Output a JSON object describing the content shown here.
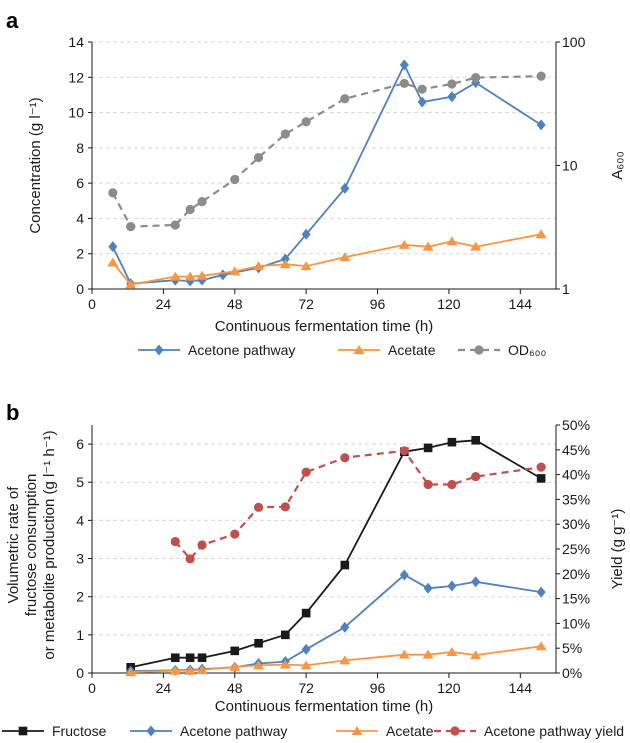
{
  "chart_data": [
    {
      "panel_label": "a",
      "type": "line",
      "xlabel": "Continuous fermentation time (h)",
      "ylabel": "Concentration (g l⁻¹)",
      "y2label": "A₆₀₀",
      "xlim": [
        0,
        156
      ],
      "ylim": [
        0,
        14
      ],
      "y2lim": [
        1,
        100
      ],
      "y2scale": "log",
      "grid": "horizontal dashed",
      "legend": "bottom",
      "x_ticks": [
        "0",
        "24",
        "48",
        "72",
        "96",
        "120",
        "144"
      ],
      "y_ticks": [
        "0",
        "2",
        "4",
        "6",
        "8",
        "10",
        "12",
        "14"
      ],
      "y2_ticks": [
        "1",
        "10",
        "100"
      ],
      "series": [
        {
          "name": "Acetone pathway",
          "axis": "left",
          "color": "#4f81bd",
          "marker": "diamond",
          "dash": "solid",
          "x": [
            7,
            13,
            28,
            33,
            37,
            44,
            56,
            65,
            72,
            85,
            105,
            111,
            121,
            129,
            151
          ],
          "y": [
            2.4,
            0.3,
            0.5,
            0.45,
            0.5,
            0.8,
            1.2,
            1.7,
            3.1,
            5.7,
            12.7,
            10.6,
            10.9,
            11.7,
            9.3
          ]
        },
        {
          "name": "Acetate",
          "axis": "left",
          "color": "#f79646",
          "marker": "triangle",
          "dash": "solid",
          "x": [
            7,
            13,
            28,
            33,
            37,
            48,
            56,
            65,
            72,
            85,
            105,
            113,
            121,
            129,
            151
          ],
          "y": [
            1.5,
            0.25,
            0.7,
            0.7,
            0.75,
            1.0,
            1.3,
            1.4,
            1.3,
            1.8,
            2.5,
            2.4,
            2.7,
            2.4,
            3.1
          ]
        },
        {
          "name": "OD₆₀₀",
          "axis": "right",
          "color": "#8c8c8c",
          "marker": "circle",
          "dash": "dashed",
          "x": [
            7,
            13,
            28,
            33,
            37,
            48,
            56,
            65,
            72,
            85,
            105,
            111,
            121,
            129,
            151
          ],
          "y": [
            6.0,
            3.2,
            3.3,
            4.4,
            5.1,
            7.7,
            11.6,
            18.0,
            22.6,
            34.7,
            46.2,
            41.5,
            45.7,
            51.5,
            52.9
          ]
        }
      ]
    },
    {
      "panel_label": "b",
      "type": "line",
      "xlabel": "Continuous fermentation time (h)",
      "ylabel_lines": [
        "Volumetric rate of",
        "fructose consumption",
        "or metabolite production (g l⁻¹ h⁻¹)"
      ],
      "y2label": "Yield (g g⁻¹)",
      "xlim": [
        0,
        156
      ],
      "ylim": [
        0,
        6.5
      ],
      "y2lim": [
        0,
        50
      ],
      "grid": "horizontal dashed",
      "legend": "bottom",
      "x_ticks": [
        "0",
        "24",
        "48",
        "72",
        "96",
        "120",
        "144"
      ],
      "y_ticks": [
        "0",
        "1",
        "2",
        "3",
        "4",
        "5",
        "6"
      ],
      "y2_ticks": [
        "0%",
        "5%",
        "10%",
        "15%",
        "20%",
        "25%",
        "30%",
        "35%",
        "40%",
        "45%",
        "50%"
      ],
      "series": [
        {
          "name": "Fructose",
          "axis": "left",
          "color": "#1a1a1a",
          "marker": "square",
          "dash": "solid",
          "x": [
            13,
            28,
            33,
            37,
            48,
            56,
            65,
            72,
            85,
            105,
            113,
            121,
            129,
            151
          ],
          "y": [
            0.15,
            0.4,
            0.4,
            0.4,
            0.58,
            0.78,
            1.0,
            1.57,
            2.83,
            5.8,
            5.9,
            6.05,
            6.1,
            5.1
          ]
        },
        {
          "name": "Acetone pathway",
          "axis": "left",
          "color": "#4f81bd",
          "marker": "diamond",
          "dash": "solid",
          "x": [
            13,
            28,
            33,
            37,
            48,
            56,
            65,
            72,
            85,
            105,
            113,
            121,
            129,
            151
          ],
          "y": [
            0.05,
            0.07,
            0.08,
            0.1,
            0.15,
            0.25,
            0.3,
            0.62,
            1.2,
            2.57,
            2.22,
            2.28,
            2.39,
            2.12
          ]
        },
        {
          "name": "Acetate",
          "axis": "left",
          "color": "#f79646",
          "marker": "triangle",
          "dash": "solid",
          "x": [
            13,
            28,
            33,
            37,
            48,
            56,
            65,
            72,
            85,
            105,
            113,
            121,
            129,
            151
          ],
          "y": [
            0.02,
            0.06,
            0.06,
            0.08,
            0.16,
            0.2,
            0.22,
            0.2,
            0.33,
            0.48,
            0.48,
            0.55,
            0.47,
            0.7
          ]
        },
        {
          "name": "Acetone pathway yield",
          "axis": "right",
          "color": "#c0504d",
          "marker": "circle",
          "dash": "dashed",
          "x": [
            28,
            33,
            37,
            48,
            56,
            65,
            72,
            85,
            105,
            113,
            121,
            129,
            151
          ],
          "y": [
            26.5,
            23.0,
            25.8,
            28.0,
            33.4,
            33.5,
            40.5,
            43.4,
            44.8,
            38.0,
            38.0,
            39.6,
            41.5
          ]
        }
      ]
    }
  ]
}
